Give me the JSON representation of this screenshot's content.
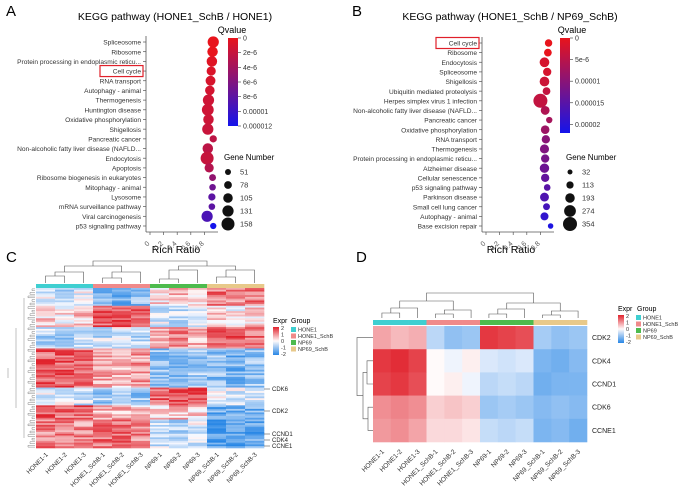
{
  "panel_labels": {
    "a": "A",
    "b": "B",
    "c": "C",
    "d": "D"
  },
  "chart_data": [
    {
      "type": "scatter",
      "panel": "A",
      "title": "KEGG pathway  (HONE1_SchB / HONE1)",
      "xlabel": "Rich Ratio",
      "x_ticks": [
        "0",
        "0.2",
        "0.4",
        "0.6",
        "0.8"
      ],
      "xlim": [
        0,
        1.0
      ],
      "highlight": "Cell cycle",
      "color_legend": {
        "title": "Qvalue",
        "ticks": [
          "0",
          "2e-6",
          "4e-6",
          "6e-6",
          "8e-6",
          "0.00001",
          "0.000012"
        ],
        "max": 1.2e-05
      },
      "size_legend": {
        "title": "Gene Number",
        "values": [
          51,
          78,
          105,
          131,
          158
        ]
      },
      "points": [
        {
          "label": "Spliceosome",
          "x": 0.93,
          "size": 131,
          "q": 0
        },
        {
          "label": "Ribosome",
          "x": 0.92,
          "size": 120,
          "q": 0
        },
        {
          "label": "Protein processing in endoplasmic reticu...",
          "x": 0.91,
          "size": 120,
          "q": 5e-07
        },
        {
          "label": "Cell cycle",
          "x": 0.9,
          "size": 100,
          "q": 8e-07
        },
        {
          "label": "RNA transport",
          "x": 0.89,
          "size": 110,
          "q": 1e-06
        },
        {
          "label": "Autophagy - animal",
          "x": 0.88,
          "size": 105,
          "q": 1.2e-06
        },
        {
          "label": "Thermogenesis",
          "x": 0.86,
          "size": 131,
          "q": 1.5e-06
        },
        {
          "label": "Huntington disease",
          "x": 0.85,
          "size": 140,
          "q": 1.5e-06
        },
        {
          "label": "Oxidative phosphorylation",
          "x": 0.86,
          "size": 120,
          "q": 1.6e-06
        },
        {
          "label": "Shigellosis",
          "x": 0.85,
          "size": 131,
          "q": 1.8e-06
        },
        {
          "label": "Pancreatic cancer",
          "x": 0.93,
          "size": 70,
          "q": 2.5e-06
        },
        {
          "label": "Non-alcoholic fatty liver disease (NAFLD...",
          "x": 0.85,
          "size": 120,
          "q": 2.5e-06
        },
        {
          "label": "Endocytosis",
          "x": 0.84,
          "size": 158,
          "q": 2e-06
        },
        {
          "label": "Apoptosis",
          "x": 0.87,
          "size": 100,
          "q": 3e-06
        },
        {
          "label": "Ribosome biogenesis in eukaryotes",
          "x": 0.92,
          "size": 65,
          "q": 5e-06
        },
        {
          "label": "Mitophagy - animal",
          "x": 0.92,
          "size": 60,
          "q": 7e-06
        },
        {
          "label": "Lysosome",
          "x": 0.91,
          "size": 70,
          "q": 8e-06
        },
        {
          "label": "mRNA surveillance pathway",
          "x": 0.91,
          "size": 60,
          "q": 8e-06
        },
        {
          "label": "Viral carcinogenesis",
          "x": 0.84,
          "size": 131,
          "q": 9e-06
        },
        {
          "label": "p53 signaling pathway",
          "x": 0.93,
          "size": 55,
          "q": 1.2e-05
        }
      ]
    },
    {
      "type": "scatter",
      "panel": "B",
      "title": "KEGG pathway  (HONE1_SchB / NP69_SchB)",
      "xlabel": "Rich Ratio",
      "x_ticks": [
        "0",
        "0.2",
        "0.4",
        "0.6",
        "0.8"
      ],
      "xlim": [
        0,
        1.0
      ],
      "highlight": "Cell cycle",
      "color_legend": {
        "title": "Qvalue",
        "ticks": [
          "0",
          "5e-6",
          "0.00001",
          "0.000015",
          "0.00002"
        ],
        "max": 2.2e-05
      },
      "size_legend": {
        "title": "Gene Number",
        "values": [
          32,
          113,
          193,
          274,
          354
        ]
      },
      "points": [
        {
          "label": "Cell cycle",
          "x": 0.92,
          "size": 120,
          "q": 0
        },
        {
          "label": "Ribosome",
          "x": 0.91,
          "size": 130,
          "q": 0
        },
        {
          "label": "Endocytosis",
          "x": 0.86,
          "size": 200,
          "q": 2e-06
        },
        {
          "label": "Spliceosome",
          "x": 0.9,
          "size": 150,
          "q": 2e-06
        },
        {
          "label": "Shigellosis",
          "x": 0.86,
          "size": 200,
          "q": 3e-06
        },
        {
          "label": "Ubiquitin mediated proteolysis",
          "x": 0.89,
          "size": 130,
          "q": 4e-06
        },
        {
          "label": "Herpes simplex virus 1 infection",
          "x": 0.8,
          "size": 354,
          "q": 4e-06
        },
        {
          "label": "Non-alcoholic fatty liver disease (NAFLD...",
          "x": 0.87,
          "size": 170,
          "q": 6e-06
        },
        {
          "label": "Pancreatic cancer",
          "x": 0.93,
          "size": 80,
          "q": 7e-06
        },
        {
          "label": "Oxidative phosphorylation",
          "x": 0.87,
          "size": 160,
          "q": 8e-06
        },
        {
          "label": "RNA transport",
          "x": 0.88,
          "size": 150,
          "q": 1e-05
        },
        {
          "label": "Thermogenesis",
          "x": 0.86,
          "size": 180,
          "q": 1.1e-05
        },
        {
          "label": "Protein processing in endoplasmic reticu...",
          "x": 0.87,
          "size": 150,
          "q": 1.2e-05
        },
        {
          "label": "Alzheimer disease",
          "x": 0.86,
          "size": 190,
          "q": 1.3e-05
        },
        {
          "label": "Cellular senescence",
          "x": 0.87,
          "size": 150,
          "q": 1.4e-05
        },
        {
          "label": "p53 signaling pathway",
          "x": 0.9,
          "size": 90,
          "q": 1.5e-05
        },
        {
          "label": "Parkinson disease",
          "x": 0.86,
          "size": 170,
          "q": 1.6e-05
        },
        {
          "label": "Small cell lung cancer",
          "x": 0.89,
          "size": 100,
          "q": 1.7e-05
        },
        {
          "label": "Autophagy - animal",
          "x": 0.86,
          "size": 140,
          "q": 1.9e-05
        },
        {
          "label": "Base excision repair",
          "x": 0.95,
          "size": 50,
          "q": 2.1e-05
        }
      ]
    },
    {
      "type": "heatmap",
      "panel": "C",
      "legend": {
        "expr_title": "Expr",
        "expr_ticks": [
          "2",
          "1",
          "0",
          "-1",
          "-2"
        ],
        "group_title": "Group",
        "groups": [
          "HONE1",
          "HONE1_SchB",
          "NP69",
          "NP69_SchB"
        ],
        "group_colors": [
          "#3fcfd1",
          "#f08a8a",
          "#4dbb4d",
          "#e8c98a"
        ]
      },
      "columns": [
        "HONE1-1",
        "HONE1-2",
        "HONE1-3",
        "HONE1_SchB-1",
        "HONE1_SchB-2",
        "HONE1_SchB-3",
        "NP69-1",
        "NP69-2",
        "NP69-3",
        "NP69_SchB-1",
        "NP69_SchB-2",
        "NP69_SchB-3"
      ],
      "row_labels": [
        "CDK6",
        "CDK2",
        "CCND1",
        "CDK4",
        "CCNE1"
      ]
    },
    {
      "type": "heatmap",
      "panel": "D",
      "legend": {
        "expr_title": "Expr",
        "expr_ticks": [
          "2",
          "1",
          "0",
          "-1",
          "-2"
        ],
        "group_title": "Group",
        "groups": [
          "HONE1",
          "HONE1_SchB",
          "NP69",
          "NP69_SchB"
        ],
        "group_colors": [
          "#3fcfd1",
          "#f08a8a",
          "#4dbb4d",
          "#e8c98a"
        ]
      },
      "columns": [
        "HONE1-1",
        "HONE1-2",
        "HONE1-3",
        "HONE1_SchB-1",
        "HONE1_SchB-2",
        "HONE1_SchB-3",
        "NP69-1",
        "NP69-2",
        "NP69-3",
        "NP69_SchB-1",
        "NP69_SchB-2",
        "NP69_SchB-3"
      ],
      "rows": [
        "CDK2",
        "CDK4",
        "CCND1",
        "CDK6",
        "CCNE1"
      ],
      "values": [
        [
          0.8,
          0.6,
          0.7,
          -0.6,
          -1.0,
          -0.9,
          1.8,
          1.7,
          1.6,
          -0.8,
          -1.0,
          -0.9
        ],
        [
          1.8,
          1.9,
          1.7,
          0.0,
          -0.1,
          0.1,
          -0.3,
          -0.4,
          -0.3,
          -1.2,
          -1.3,
          -1.1
        ],
        [
          1.7,
          1.8,
          1.6,
          0.0,
          0.1,
          -0.1,
          -0.6,
          -0.5,
          -0.6,
          -1.3,
          -1.2,
          -1.2
        ],
        [
          1.0,
          1.1,
          1.0,
          0.4,
          0.5,
          0.4,
          -0.9,
          -0.8,
          -0.9,
          -1.1,
          -1.0,
          -1.1
        ],
        [
          0.9,
          1.0,
          0.8,
          0.3,
          0.3,
          0.2,
          -0.5,
          -0.6,
          -0.5,
          -1.2,
          -1.1,
          -1.3
        ]
      ]
    }
  ]
}
